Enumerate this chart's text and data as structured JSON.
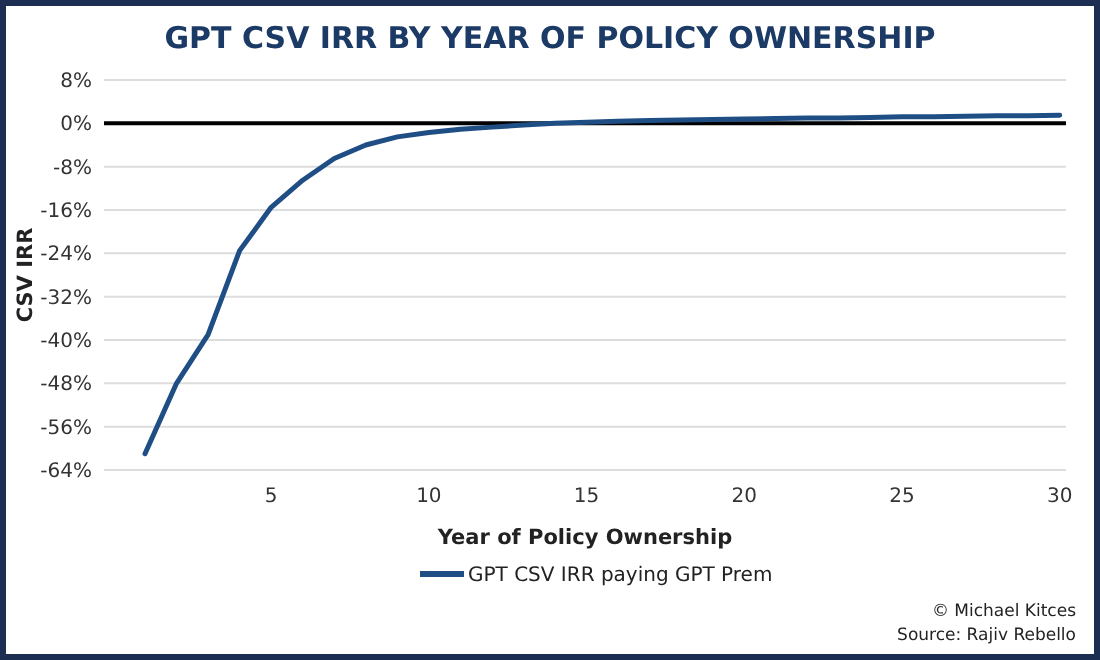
{
  "chart_data": {
    "type": "line",
    "title": "GPT CSV IRR BY YEAR OF POLICY OWNERSHIP",
    "xlabel": "Year of Policy Ownership",
    "ylabel": "CSV IRR",
    "x": [
      1,
      2,
      3,
      4,
      5,
      6,
      7,
      8,
      9,
      10,
      11,
      12,
      13,
      14,
      15,
      16,
      17,
      18,
      19,
      20,
      21,
      22,
      23,
      24,
      25,
      26,
      27,
      28,
      29,
      30
    ],
    "series": [
      {
        "name": "GPT CSV IRR paying GPT Prem",
        "color": "#1f4e85",
        "values": [
          -61,
          -48,
          -39,
          -23.5,
          -15.5,
          -10.5,
          -6.5,
          -4,
          -2.5,
          -1.7,
          -1.1,
          -0.7,
          -0.3,
          0,
          0.2,
          0.4,
          0.5,
          0.6,
          0.7,
          0.8,
          0.9,
          1,
          1,
          1.1,
          1.2,
          1.2,
          1.3,
          1.4,
          1.4,
          1.5
        ]
      }
    ],
    "xlim": [
      -0.3,
      30.2
    ],
    "xticks": [
      5,
      10,
      15,
      20,
      25,
      30
    ],
    "ylim": [
      -64,
      8
    ],
    "yticks": [
      {
        "value": 8,
        "label": "8%"
      },
      {
        "value": 0,
        "label": "0%"
      },
      {
        "value": -8,
        "label": "-8%"
      },
      {
        "value": -16,
        "label": "-16%"
      },
      {
        "value": -24,
        "label": "-24%"
      },
      {
        "value": -32,
        "label": "-32%"
      },
      {
        "value": -40,
        "label": "-40%"
      },
      {
        "value": -48,
        "label": "-48%"
      },
      {
        "value": -56,
        "label": "-56%"
      },
      {
        "value": -64,
        "label": "-64%"
      }
    ],
    "ref_lines": [
      {
        "axis": "y",
        "value": 0,
        "color": "#000000"
      }
    ],
    "grid": "y",
    "legend": "bottom",
    "marker": "none",
    "line_style": "solid",
    "annotations": [
      "© Michael Kitces",
      "Source: Rajiv Rebello"
    ]
  }
}
